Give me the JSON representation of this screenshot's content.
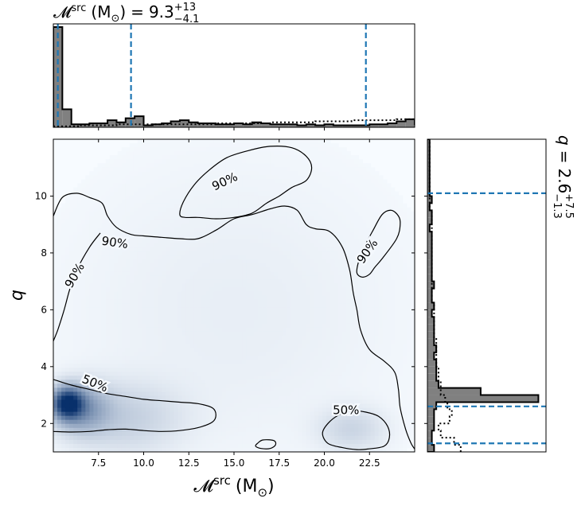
{
  "chart_data": {
    "type": "heatmap",
    "layout": "corner plot with marginal histograms",
    "x_variable": "chirp mass (source frame)",
    "y_variable": "q",
    "xlabel_main": "𝓜",
    "xlabel_sup": "src",
    "xlabel_unit": "(M",
    "xlabel_unit_sub": "⊙",
    "xlabel_unit_close": ")",
    "ylabel": "q",
    "xlim": [
      5.0,
      25.0
    ],
    "ylim": [
      1.0,
      12.0
    ],
    "xticks": [
      7.5,
      10.0,
      12.5,
      15.0,
      17.5,
      20.0,
      22.5
    ],
    "xtick_labels": [
      "7.5",
      "10.0",
      "12.5",
      "15.0",
      "17.5",
      "20.0",
      "22.5"
    ],
    "yticks": [
      2,
      4,
      6,
      8,
      10
    ],
    "ytick_labels": [
      "2",
      "4",
      "6",
      "8",
      "10"
    ],
    "grid": false,
    "colormap": "Blues",
    "density_peaks": [
      {
        "x": 5.8,
        "y": 2.7,
        "weight": 1.0,
        "sx": 0.55,
        "sy": 0.35
      },
      {
        "x": 6.6,
        "y": 2.5,
        "weight": 0.35,
        "sx": 1.0,
        "sy": 0.55
      },
      {
        "x": 9.0,
        "y": 2.2,
        "weight": 0.12,
        "sx": 2.0,
        "sy": 0.8
      },
      {
        "x": 21.5,
        "y": 1.8,
        "weight": 0.1,
        "sx": 1.2,
        "sy": 0.5
      },
      {
        "x": 15.0,
        "y": 6.0,
        "weight": 0.025,
        "sx": 6.0,
        "sy": 3.5
      }
    ],
    "contour_levels": [
      "50%",
      "90%"
    ],
    "contours": [
      {
        "level": "50%",
        "label": "50%",
        "label_at": [
          7.3,
          3.4
        ],
        "label_rotation": 22,
        "points": [
          [
            5.0,
            3.55
          ],
          [
            6.0,
            3.35
          ],
          [
            7.0,
            3.2
          ],
          [
            8.0,
            3.05
          ],
          [
            9.0,
            2.95
          ],
          [
            10.0,
            2.85
          ],
          [
            11.0,
            2.8
          ],
          [
            12.0,
            2.75
          ],
          [
            13.0,
            2.7
          ],
          [
            13.8,
            2.55
          ],
          [
            14.0,
            2.3
          ],
          [
            13.8,
            2.05
          ],
          [
            13.0,
            1.85
          ],
          [
            12.0,
            1.75
          ],
          [
            11.0,
            1.72
          ],
          [
            10.0,
            1.75
          ],
          [
            9.0,
            1.8
          ],
          [
            8.0,
            1.78
          ],
          [
            7.0,
            1.72
          ],
          [
            6.0,
            1.7
          ],
          [
            5.0,
            1.72
          ]
        ],
        "closed": false
      },
      {
        "level": "50%",
        "label": "50%",
        "label_at": [
          21.2,
          2.45
        ],
        "label_rotation": 0,
        "points": [
          [
            22.4,
            1.1
          ],
          [
            23.3,
            1.2
          ],
          [
            23.6,
            1.5
          ],
          [
            23.5,
            1.9
          ],
          [
            23.0,
            2.25
          ],
          [
            22.3,
            2.4
          ],
          [
            21.5,
            2.45
          ],
          [
            20.8,
            2.3
          ],
          [
            20.2,
            2.0
          ],
          [
            19.9,
            1.65
          ],
          [
            20.2,
            1.3
          ],
          [
            21.0,
            1.15
          ],
          [
            21.8,
            1.08
          ]
        ],
        "closed": true
      },
      {
        "level": "50%",
        "label": "",
        "label_at": null,
        "label_rotation": 0,
        "points": [
          [
            16.3,
            1.3
          ],
          [
            16.6,
            1.42
          ],
          [
            17.2,
            1.4
          ],
          [
            17.3,
            1.25
          ],
          [
            17.0,
            1.12
          ],
          [
            16.5,
            1.12
          ],
          [
            16.2,
            1.2
          ]
        ],
        "closed": true
      },
      {
        "level": "90%",
        "label": "90%",
        "label_at": [
          14.5,
          10.5
        ],
        "label_rotation": -25,
        "points": [
          [
            12.0,
            9.35
          ],
          [
            12.2,
            9.8
          ],
          [
            12.8,
            10.4
          ],
          [
            13.6,
            10.9
          ],
          [
            14.6,
            11.35
          ],
          [
            15.8,
            11.6
          ],
          [
            17.0,
            11.75
          ],
          [
            18.2,
            11.7
          ],
          [
            19.0,
            11.4
          ],
          [
            19.3,
            11.0
          ],
          [
            19.0,
            10.55
          ],
          [
            18.2,
            10.3
          ],
          [
            17.5,
            10.0
          ],
          [
            16.8,
            9.75
          ],
          [
            16.0,
            9.4
          ],
          [
            15.0,
            9.25
          ],
          [
            14.0,
            9.2
          ],
          [
            13.0,
            9.25
          ],
          [
            12.3,
            9.25
          ]
        ],
        "closed": true
      },
      {
        "level": "90%",
        "label": "90%",
        "label_at": [
          8.4,
          8.35
        ],
        "label_rotation": 8,
        "points": [
          [
            5.0,
            9.3
          ],
          [
            5.5,
            9.95
          ],
          [
            6.3,
            10.1
          ],
          [
            7.0,
            9.95
          ],
          [
            7.7,
            9.75
          ],
          [
            8.0,
            9.3
          ],
          [
            8.5,
            8.9
          ],
          [
            9.3,
            8.65
          ],
          [
            10.0,
            8.6
          ],
          [
            11.0,
            8.55
          ],
          [
            12.0,
            8.5
          ],
          [
            13.0,
            8.5
          ],
          [
            14.0,
            8.8
          ],
          [
            15.0,
            9.2
          ],
          [
            16.0,
            9.35
          ],
          [
            17.0,
            9.55
          ],
          [
            17.8,
            9.65
          ],
          [
            18.5,
            9.5
          ],
          [
            19.0,
            9.0
          ],
          [
            19.5,
            8.85
          ],
          [
            20.3,
            8.75
          ],
          [
            21.0,
            8.2
          ],
          [
            21.4,
            7.4
          ],
          [
            21.6,
            6.6
          ],
          [
            21.8,
            6.0
          ],
          [
            22.0,
            5.3
          ],
          [
            22.5,
            4.6
          ],
          [
            23.3,
            4.2
          ],
          [
            23.9,
            3.8
          ],
          [
            24.1,
            3.2
          ],
          [
            24.2,
            2.55
          ],
          [
            24.5,
            1.8
          ],
          [
            24.8,
            1.3
          ],
          [
            25.0,
            1.1
          ]
        ],
        "closed": false
      },
      {
        "level": "90%",
        "label": "90%",
        "label_at": [
          6.2,
          7.2
        ],
        "label_rotation": -60,
        "points": [
          [
            5.0,
            4.9
          ],
          [
            5.25,
            5.3
          ],
          [
            5.6,
            6.0
          ],
          [
            5.9,
            6.7
          ],
          [
            6.3,
            7.4
          ],
          [
            7.0,
            8.2
          ],
          [
            7.6,
            8.7
          ]
        ],
        "closed": false
      },
      {
        "level": "90%",
        "label": "90%",
        "label_at": [
          22.4,
          8.05
        ],
        "label_rotation": -55,
        "points": [
          [
            22.8,
            7.5
          ],
          [
            23.2,
            7.8
          ],
          [
            24.0,
            8.5
          ],
          [
            24.2,
            9.0
          ],
          [
            24.1,
            9.3
          ],
          [
            23.7,
            9.5
          ],
          [
            23.2,
            9.35
          ],
          [
            22.7,
            8.8
          ],
          [
            22.2,
            8.2
          ],
          [
            21.9,
            7.7
          ],
          [
            21.8,
            7.3
          ],
          [
            22.1,
            7.15
          ],
          [
            22.5,
            7.25
          ]
        ],
        "closed": true
      }
    ],
    "top_marginal": {
      "title_prefix": "𝓜",
      "title_sup": "src",
      "title_unit": "(M",
      "title_unit_sub": "⊙",
      "title_unit_close": ")",
      "title_eq": "=",
      "median": "9.3",
      "upper": "+13",
      "lower": "−4.1",
      "bin_edges_start": 5.0,
      "bin_width": 0.5,
      "counts": [
        100,
        18,
        3,
        3,
        4,
        4,
        7,
        5,
        9,
        11,
        2,
        3,
        4,
        6,
        7,
        5,
        4,
        4,
        3,
        3,
        4,
        3,
        5,
        4,
        3,
        3,
        3,
        2,
        3,
        2,
        3,
        2,
        2,
        2,
        2,
        3,
        3,
        4,
        6,
        8,
        3,
        3,
        4,
        3,
        3,
        3,
        2,
        2,
        2,
        1
      ],
      "prior_counts": [
        1,
        1,
        1,
        2,
        2,
        2,
        2,
        3,
        3,
        3,
        3,
        3,
        3,
        3,
        3,
        3,
        3,
        3,
        4,
        4,
        4,
        4,
        4,
        4,
        5,
        5,
        5,
        5,
        5,
        6,
        6,
        6,
        6,
        7,
        7,
        7,
        7,
        7,
        8,
        8,
        8,
        9,
        9,
        9,
        10,
        10,
        10,
        11,
        11,
        12
      ],
      "ymax": 100,
      "quantile_lines": [
        5.25,
        9.3,
        22.3
      ]
    },
    "right_marginal": {
      "title_prefix": "q",
      "title_eq": "=",
      "median": "2.6",
      "upper": "+7.5",
      "lower": "−1.3",
      "bin_edges_start": 1.0,
      "bin_width": 0.25,
      "counts": [
        3,
        2,
        2,
        3,
        3,
        3,
        4,
        50,
        24,
        5,
        4,
        4,
        4,
        3,
        4,
        3,
        3,
        3,
        3,
        2,
        3,
        2,
        2,
        3,
        2,
        2,
        2,
        2,
        2,
        2,
        2,
        1,
        2,
        2,
        1,
        2,
        1,
        1,
        1,
        1,
        1,
        1,
        1,
        1
      ],
      "prior_counts": [
        15,
        12,
        6,
        5,
        10,
        11,
        9,
        8,
        6,
        6,
        5,
        5,
        4,
        4,
        4,
        4,
        3,
        3,
        3,
        3,
        3,
        2,
        2,
        2,
        2,
        2,
        2,
        2,
        2,
        2,
        2,
        2,
        2,
        2,
        1,
        1,
        1,
        1,
        1,
        1,
        1,
        1,
        1,
        1
      ],
      "xmax": 52,
      "quantile_lines": [
        1.3,
        2.6,
        10.1
      ]
    },
    "colors": {
      "hist_fill": "#808080",
      "hist_edge": "#000000",
      "quantile_line": "#1f77b4",
      "contour": "#000000",
      "density_low": "#f7fbff",
      "density_high": "#08306b"
    }
  }
}
